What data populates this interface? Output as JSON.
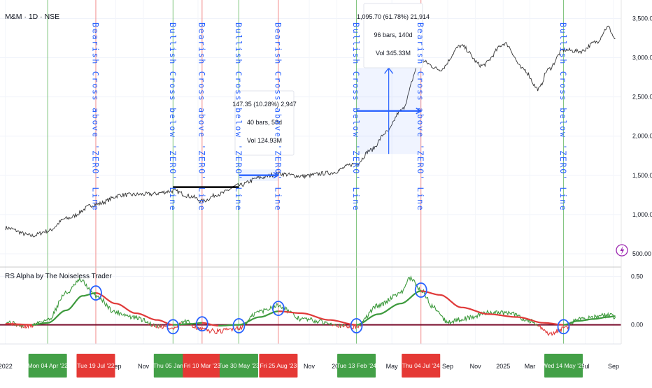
{
  "header": {
    "symbol_title": "M&M · 1D · NSE",
    "indicator_title": "RS Alpha by The Noiseless Trader"
  },
  "colors": {
    "price_line": "#333333",
    "green_vertical": "#7cc37a",
    "red_vertical": "#f28b8b",
    "blue_annotation": "#2962ff",
    "rs_green": "#3d9a3d",
    "rs_red": "#e03a3a",
    "zero_line": "#7a0f2e",
    "tag_green": "#43a047",
    "tag_red": "#e53935",
    "support_line": "#000000",
    "lightning_icon": "#9c27b0"
  },
  "chart_data": [
    {
      "type": "line",
      "name": "price-panel",
      "title": "M&M · 1D · NSE",
      "ylim": [
        420,
        3700
      ],
      "y_ticks": [
        "3,500.00",
        "3,000.00",
        "2,500.00",
        "2,000.00",
        "1,500.00",
        "1,000.00",
        "500.00"
      ],
      "y_tick_values": [
        3500,
        3000,
        2500,
        2000,
        1500,
        1000,
        500
      ],
      "series": [
        {
          "x": [
            "2022-01-01",
            "2022-03-01",
            "2022-04-04",
            "2022-05-15",
            "2022-07-19",
            "2022-09-15",
            "2022-11-15",
            "2023-01-05",
            "2023-02-15",
            "2023-03-10",
            "2023-04-15",
            "2023-05-30",
            "2023-07-15",
            "2023-08-25",
            "2023-10-15",
            "2023-12-15",
            "2024-02-13",
            "2024-03-15",
            "2024-04-20",
            "2024-05-20",
            "2024-07-04",
            "2024-08-15",
            "2024-09-30",
            "2024-11-15",
            "2025-01-05",
            "2025-02-15",
            "2025-03-20",
            "2025-04-10",
            "2025-05-14",
            "2025-06-20",
            "2025-07-25",
            "2025-08-20",
            "2025-09-05"
          ],
          "values": [
            830,
            730,
            790,
            950,
            1130,
            1250,
            1260,
            1300,
            1230,
            1170,
            1260,
            1370,
            1470,
            1520,
            1490,
            1530,
            1650,
            1820,
            2050,
            2320,
            2960,
            2850,
            3150,
            2900,
            3180,
            2850,
            2600,
            2850,
            3100,
            3080,
            3200,
            3390,
            3240
          ]
        }
      ],
      "annotations": [
        {
          "text": "147.35 (10.28%) 2,947",
          "line2": "40 bars, 58d",
          "line3": "Vol 124.93M"
        },
        {
          "text": "1,095.70 (61.78%) 21,914",
          "line2": "96 bars, 140d",
          "line3": "Vol 345.33M"
        }
      ],
      "support_level": 1350,
      "measure_1": {
        "from_x": "2023-05-30",
        "to_x": "2023-08-25",
        "from_y": 1428,
        "to_y": 1575
      },
      "measure_2": {
        "from_x": "2024-02-13",
        "to_x": "2024-07-04",
        "from_y": 1773,
        "to_y": 2869
      }
    },
    {
      "type": "line",
      "name": "rs-alpha-panel",
      "title": "RS Alpha by The Noiseless Trader",
      "ylim": [
        -0.17,
        0.57
      ],
      "y_ticks": [
        "0.50",
        "0.00"
      ],
      "y_tick_values": [
        0.5,
        0.0
      ],
      "series": [
        {
          "name": "",
          "x": [
            "2022-01-01",
            "2022-02-15",
            "2022-04-04",
            "2022-05-15",
            "2022-06-15",
            "2022-07-19",
            "2022-09-01",
            "2022-10-15",
            "2022-12-01",
            "2023-01-05",
            "2023-02-01",
            "2023-03-10",
            "2023-04-15",
            "2023-05-30",
            "2023-07-15",
            "2023-08-25",
            "2023-10-15",
            "2023-12-15",
            "2024-01-20",
            "2024-02-13",
            "2024-04-01",
            "2024-05-20",
            "2024-06-10",
            "2024-07-04",
            "2024-08-01",
            "2024-09-01",
            "2024-10-15",
            "2024-12-01",
            "2025-01-15",
            "2025-03-01",
            "2025-04-15",
            "2025-05-14",
            "2025-06-15",
            "2025-07-20",
            "2025-08-20",
            "2025-09-05"
          ],
          "values": [
            0.03,
            -0.02,
            0.05,
            0.33,
            0.46,
            0.3,
            0.13,
            0.07,
            -0.01,
            -0.04,
            0.03,
            -0.05,
            -0.07,
            -0.03,
            0.14,
            0.2,
            0.06,
            0.02,
            -0.02,
            -0.02,
            0.2,
            0.33,
            0.48,
            0.36,
            0.18,
            0.03,
            0.07,
            0.13,
            0.12,
            0.04,
            -0.1,
            -0.04,
            0.06,
            0.08,
            0.1,
            0.08
          ]
        },
        {
          "name": "",
          "x": [
            "2022-01-01",
            "2022-03-01",
            "2022-04-04",
            "2022-05-15",
            "2022-06-20",
            "2022-07-19",
            "2022-09-01",
            "2022-10-15",
            "2022-12-01",
            "2023-01-05",
            "2023-02-15",
            "2023-03-10",
            "2023-04-15",
            "2023-05-30",
            "2023-07-15",
            "2023-08-25",
            "2023-10-15",
            "2023-12-15",
            "2024-02-13",
            "2024-04-01",
            "2024-05-20",
            "2024-07-04",
            "2024-08-15",
            "2024-10-01",
            "2024-12-01",
            "2025-02-01",
            "2025-04-01",
            "2025-05-14",
            "2025-06-15",
            "2025-07-20",
            "2025-08-20",
            "2025-09-05"
          ],
          "values": [
            0.01,
            0.0,
            0.02,
            0.15,
            0.3,
            0.33,
            0.22,
            0.12,
            0.05,
            0.0,
            0.01,
            0.02,
            -0.01,
            0.0,
            0.08,
            0.14,
            0.12,
            0.05,
            0.0,
            0.11,
            0.22,
            0.35,
            0.31,
            0.18,
            0.11,
            0.08,
            0.02,
            0.0,
            0.04,
            0.06,
            0.08,
            0.09
          ]
        }
      ],
      "zero_line": 0.0
    }
  ],
  "x_axis": {
    "labels": [
      {
        "text": "2022",
        "x": "2022-01-01"
      },
      {
        "text": "Sep",
        "x": "2022-09-01"
      },
      {
        "text": "Nov",
        "x": "2022-11-01"
      },
      {
        "text": "Mar",
        "x": "2023-03-01"
      },
      {
        "text": "Nov",
        "x": "2023-11-01"
      },
      {
        "text": "202",
        "x": "2024-01-01"
      },
      {
        "text": "May",
        "x": "2024-05-01"
      },
      {
        "text": "Sep",
        "x": "2024-09-01"
      },
      {
        "text": "Nov",
        "x": "2024-11-01"
      },
      {
        "text": "2025",
        "x": "2025-01-01"
      },
      {
        "text": "Mar",
        "x": "2025-03-01"
      },
      {
        "text": "Jul",
        "x": "2025-07-01"
      },
      {
        "text": "Sep",
        "x": "2025-09-01"
      }
    ],
    "date_tags": [
      {
        "text": "Mon 04 Apr '22",
        "x": "2022-04-04",
        "kind": "green"
      },
      {
        "text": "Tue 19 Jul '22",
        "x": "2022-07-19",
        "kind": "red"
      },
      {
        "text": "Thu 05 Jan '23",
        "x": "2023-01-05",
        "kind": "green"
      },
      {
        "text": "Fri 10 Mar '23",
        "x": "2023-03-10",
        "kind": "red"
      },
      {
        "text": "Tue 30 May '23",
        "x": "2023-05-30",
        "kind": "green"
      },
      {
        "text": "Fri 25 Aug '23",
        "x": "2023-08-25",
        "kind": "red"
      },
      {
        "text": "Tue 13 Feb '24",
        "x": "2024-02-13",
        "kind": "green"
      },
      {
        "text": "Thu 04 Jul '24",
        "x": "2024-07-04",
        "kind": "red"
      },
      {
        "text": "Wed 14 May '25",
        "x": "2025-05-14",
        "kind": "green"
      }
    ]
  },
  "signals": [
    {
      "text": "Bearish Cross above 'ZERO' Line",
      "x": "2022-07-19",
      "kind": "red"
    },
    {
      "text": "Bullish Cross below 'ZERO' Line",
      "x": "2023-01-05",
      "kind": "green"
    },
    {
      "text": "Bearish Cross above 'ZERO' Line",
      "x": "2023-03-10",
      "kind": "red"
    },
    {
      "text": "Bullish Cross below 'ZERO' Line",
      "x": "2023-05-30",
      "kind": "green"
    },
    {
      "text": "Bearish Cross above 'ZERO' Line",
      "x": "2023-08-25",
      "kind": "red"
    },
    {
      "text": "Bullish Cross below 'ZERO' Line",
      "x": "2024-02-13",
      "kind": "green"
    },
    {
      "text": "Bearish Cross above 'ZERO' Line",
      "x": "2024-07-04",
      "kind": "red"
    },
    {
      "text": "Bullish Cross below 'ZERO' Line",
      "x": "2025-05-14",
      "kind": "green"
    }
  ],
  "plain_verticals": [
    {
      "x": "2022-04-04",
      "kind": "green"
    }
  ],
  "cross_circles": [
    {
      "x": "2022-07-19",
      "y": 0.33
    },
    {
      "x": "2023-01-05",
      "y": -0.02
    },
    {
      "x": "2023-03-10",
      "y": 0.01
    },
    {
      "x": "2023-05-30",
      "y": -0.01
    },
    {
      "x": "2023-08-25",
      "y": 0.17
    },
    {
      "x": "2024-02-13",
      "y": -0.01
    },
    {
      "x": "2024-07-04",
      "y": 0.36
    },
    {
      "x": "2025-05-14",
      "y": -0.02
    }
  ]
}
